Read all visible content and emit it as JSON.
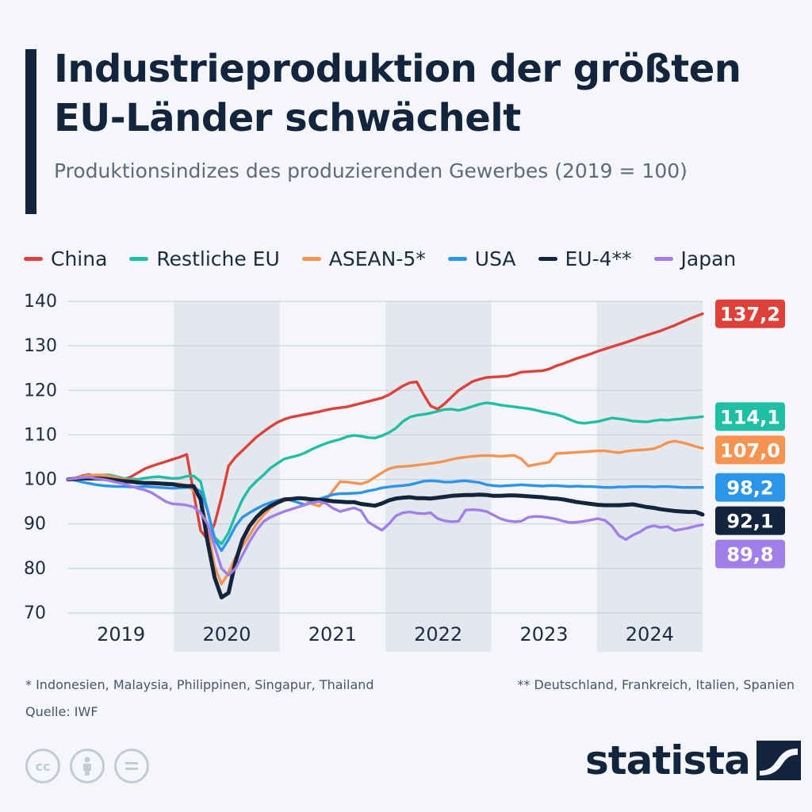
{
  "title": "Industrieproduktion der größten EU-Länder schwächelt",
  "subtitle": "Produktionsindizes des produzierenden Gewerbes (2019 = 100)",
  "footnote_left": "* Indonesien, Malaysia, Philippinen, Singapur, Thailand",
  "footnote_right": "** Deutschland, Frankreich, Italien, Spanien",
  "source": "Quelle: IWF",
  "brand": "statista",
  "license_icons": [
    "cc-icon",
    "attribution-icon",
    "no-derivatives-icon"
  ],
  "cc_label": "cc",
  "chart_data": {
    "type": "line",
    "ylim": [
      70,
      140
    ],
    "yticks": [
      70,
      80,
      90,
      100,
      110,
      120,
      130,
      140
    ],
    "year_labels": [
      "2019",
      "2020",
      "2021",
      "2022",
      "2023",
      "2024"
    ],
    "shaded_years": [
      "2020",
      "2022",
      "2024"
    ],
    "grid": true,
    "legend_position": "top",
    "x_start": 2019.0,
    "x_step_months": 1,
    "series": [
      {
        "name": "China",
        "color": "#e0403a",
        "end_label": "137,2",
        "values": [
          100,
          100.3,
          100.8,
          101.1,
          100.7,
          100.4,
          100.2,
          99.9,
          100,
          100.6,
          101.5,
          102.4,
          103,
          103.5,
          104,
          104.5,
          105,
          105.6,
          97,
          88.5,
          86.5,
          90,
          96,
          103,
          105,
          106.5,
          108,
          109.5,
          110.7,
          111.8,
          112.8,
          113.5,
          114,
          114.3,
          114.6,
          114.9,
          115.2,
          115.6,
          115.9,
          116.1,
          116.3,
          116.7,
          117.1,
          117.5,
          117.9,
          118.3,
          119,
          120,
          121,
          121.7,
          121.9,
          119,
          116.5,
          115.8,
          117,
          118.5,
          120,
          121,
          122,
          122.5,
          122.9,
          123,
          123.1,
          123.2,
          123.6,
          124.1,
          124.2,
          124.3,
          124.4,
          124.8,
          125.5,
          126,
          126.6,
          127.2,
          127.7,
          128.2,
          128.8,
          129.3,
          129.8,
          130.3,
          130.8,
          131.3,
          131.9,
          132.4,
          132.9,
          133.4,
          134,
          134.6,
          135.3,
          136,
          136.6,
          137.2
        ]
      },
      {
        "name": "Restliche EU",
        "color": "#1fbfa5",
        "end_label": "114,1",
        "values": [
          100,
          100.2,
          100.5,
          100.6,
          100.8,
          101,
          101,
          100.6,
          100.2,
          100.1,
          100,
          100.3,
          100.5,
          100.6,
          100.4,
          100.2,
          100.3,
          100.7,
          100.8,
          99.5,
          93,
          87,
          85.5,
          88,
          92,
          95.5,
          98,
          99.6,
          101,
          102.5,
          103.6,
          104.6,
          105,
          105.4,
          106,
          106.8,
          107.5,
          108.1,
          108.6,
          109,
          109.6,
          109.9,
          109.7,
          109.4,
          109.3,
          109.8,
          110.5,
          111.5,
          113,
          114,
          114.4,
          114.6,
          114.9,
          115.3,
          115.7,
          115.8,
          115.5,
          115.9,
          116.4,
          116.9,
          117.2,
          117,
          116.7,
          116.5,
          116.3,
          116.1,
          115.9,
          115.6,
          115.2,
          114.9,
          114.6,
          114.1,
          113.4,
          112.8,
          112.6,
          112.8,
          113,
          113.4,
          113.8,
          113.6,
          113.4,
          113.1,
          113,
          112.9,
          113.2,
          113.4,
          113.3,
          113.5,
          113.6,
          113.8,
          113.9,
          114.1
        ]
      },
      {
        "name": "ASEAN-5*",
        "color": "#f59452",
        "end_label": "107,0",
        "values": [
          100,
          100.3,
          100.6,
          100.9,
          101,
          101,
          100.7,
          100.4,
          100,
          99.8,
          99.5,
          99.2,
          99,
          99.1,
          99.2,
          99.1,
          99,
          98.7,
          97.5,
          95.5,
          89,
          80.5,
          76.5,
          79,
          82.5,
          85,
          87.5,
          90,
          92,
          93.5,
          94.6,
          95.2,
          95.6,
          95.9,
          95.5,
          94.5,
          94,
          95.5,
          97.5,
          99.5,
          99.4,
          99.2,
          99,
          99.5,
          100.5,
          101.5,
          102.4,
          102.8,
          102.9,
          103,
          103.2,
          103.4,
          103.6,
          103.8,
          104.1,
          104.5,
          104.8,
          105,
          105.2,
          105.3,
          105.4,
          105.3,
          105.2,
          105.3,
          105.4,
          104.6,
          103,
          103.3,
          103.6,
          103.9,
          105.8,
          105.9,
          106,
          106.1,
          106.2,
          106.3,
          106.4,
          106.4,
          106.2,
          106,
          106.3,
          106.5,
          106.6,
          106.7,
          106.9,
          107.5,
          108.3,
          108.6,
          108.3,
          107.9,
          107.4,
          107
        ]
      },
      {
        "name": "USA",
        "color": "#2b95e9",
        "end_label": "98,2",
        "values": [
          100,
          99.8,
          99.4,
          99.1,
          98.8,
          98.6,
          98.5,
          98.4,
          98.4,
          98.3,
          98.3,
          98.4,
          98.3,
          98.2,
          98.1,
          98,
          98.1,
          98.2,
          98.2,
          97.3,
          93,
          86.5,
          84,
          86.5,
          89.5,
          91.5,
          92.5,
          93.4,
          94.2,
          94.8,
          95.3,
          95.6,
          95.3,
          94.8,
          94.3,
          95,
          95.6,
          96.1,
          96.6,
          96.8,
          96.8,
          96.9,
          97,
          97.4,
          97.7,
          98.1,
          98.3,
          98.5,
          98.6,
          98.8,
          99.2,
          99.6,
          99.7,
          99.6,
          99.4,
          99.4,
          99.6,
          99.7,
          99.5,
          99.3,
          98.8,
          98.6,
          98.5,
          98.6,
          98.7,
          98.8,
          98.7,
          98.6,
          98.5,
          98.6,
          98.6,
          98.5,
          98.4,
          98.5,
          98.4,
          98.4,
          98.3,
          98.2,
          98.2,
          98.3,
          98.3,
          98.4,
          98.4,
          98.4,
          98.3,
          98.4,
          98.4,
          98.3,
          98.2,
          98.2,
          98.2,
          98.2
        ]
      },
      {
        "name": "EU-4**",
        "color": "#13253c",
        "end_label": "92,1",
        "values": [
          100,
          100.1,
          100.2,
          100.2,
          100.2,
          100.1,
          100,
          99.8,
          99.6,
          99.5,
          99.3,
          99.2,
          99.2,
          99.1,
          99,
          98.9,
          98.6,
          98.5,
          98.5,
          95.5,
          86,
          78,
          73.5,
          74.5,
          81.5,
          86.5,
          89.5,
          91.5,
          93,
          94,
          94.8,
          95.5,
          95.6,
          95.8,
          95.7,
          95.5,
          95.4,
          95.3,
          95.1,
          95,
          94.9,
          94.9,
          94.5,
          94.3,
          94.1,
          94.6,
          95.3,
          95.7,
          95.9,
          96,
          95.8,
          95.8,
          95.7,
          95.9,
          96.1,
          96.3,
          96.4,
          96.5,
          96.5,
          96.6,
          96.5,
          96.3,
          96.3,
          96.4,
          96.4,
          96.3,
          96.2,
          96.1,
          96,
          95.8,
          95.7,
          95.5,
          95.2,
          94.9,
          94.7,
          94.5,
          94.3,
          94.2,
          94.2,
          94.2,
          94.3,
          94.4,
          94.1,
          93.8,
          93.6,
          93.3,
          93.1,
          92.9,
          92.8,
          92.7,
          92.7,
          92.1
        ]
      },
      {
        "name": "Japan",
        "color": "#a27fe8",
        "end_label": "89,8",
        "values": [
          100,
          100.2,
          100.4,
          100.5,
          100.2,
          100,
          99.7,
          99.3,
          99,
          98.5,
          98,
          97.6,
          97,
          96,
          95,
          94.5,
          94.4,
          94.2,
          93.8,
          92.5,
          90,
          85,
          80,
          78.5,
          80,
          83,
          86,
          88.5,
          90.5,
          91.5,
          92.2,
          92.8,
          93.3,
          93.8,
          94.3,
          94.8,
          95,
          94.6,
          93.5,
          92.8,
          93.2,
          93.6,
          93,
          90.5,
          89.5,
          88.6,
          90,
          91.8,
          92.5,
          92.7,
          92.4,
          92.3,
          92.5,
          91.2,
          90.7,
          90.5,
          90.6,
          93.1,
          93.2,
          93.1,
          92.8,
          92,
          91.2,
          90.7,
          90.5,
          90.6,
          91.5,
          91.7,
          91.6,
          91.4,
          91.1,
          90.6,
          90.3,
          90.4,
          90.6,
          90.9,
          91.2,
          90.8,
          89.5,
          87.4,
          86.5,
          87.5,
          88.2,
          89.2,
          89.6,
          89.2,
          89.4,
          88.5,
          88.8,
          89.1,
          89.5,
          89.8
        ]
      }
    ]
  }
}
